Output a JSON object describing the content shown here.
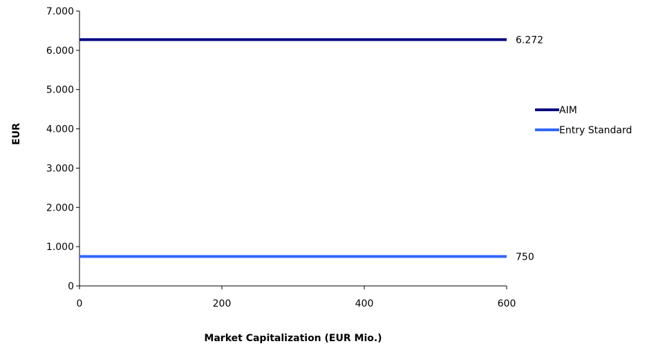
{
  "chart_data": {
    "type": "line",
    "xlabel": "Market Capitalization (EUR Mio.)",
    "ylabel": "EUR",
    "xlim": [
      0,
      600
    ],
    "ylim": [
      0,
      7000
    ],
    "x_ticks": [
      0,
      200,
      400,
      600
    ],
    "x_tick_labels": [
      "0",
      "200",
      "400",
      "600"
    ],
    "y_ticks": [
      0,
      1000,
      2000,
      3000,
      4000,
      5000,
      6000,
      7000
    ],
    "y_tick_labels": [
      "0",
      "1.000",
      "2.000",
      "3.000",
      "4.000",
      "5.000",
      "6.000",
      "7.000"
    ],
    "grid": false,
    "legend_position": "right",
    "series": [
      {
        "name": "AIM",
        "color": "#000080",
        "x": [
          0,
          600
        ],
        "y": [
          6272,
          6272
        ],
        "end_label": "6.272"
      },
      {
        "name": "Entry Standard",
        "color": "#3366ff",
        "x": [
          0,
          600
        ],
        "y": [
          750,
          750
        ],
        "end_label": "750"
      }
    ]
  }
}
